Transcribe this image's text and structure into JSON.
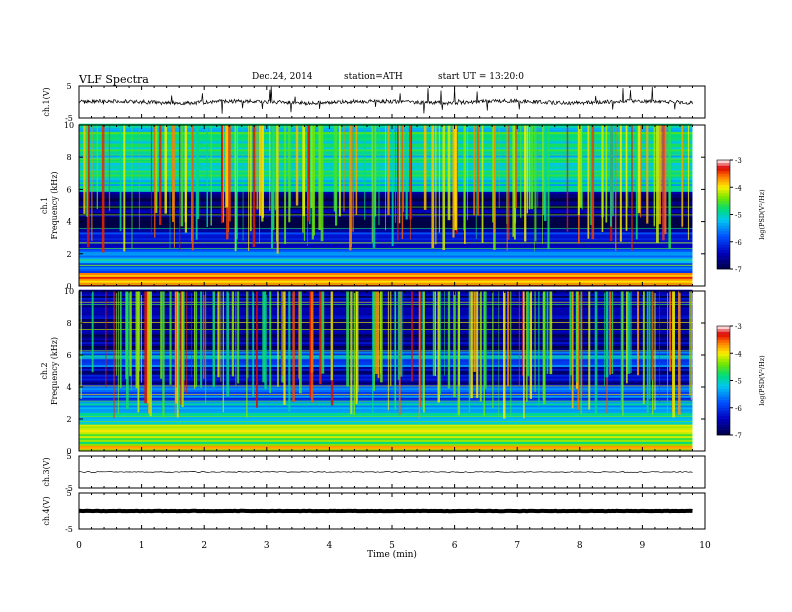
{
  "header": {
    "title": "VLF  Spectra",
    "date": "Dec.24, 2014",
    "station": "station=ATH",
    "start": "start  UT  =   13:20:0"
  },
  "chart_data": {
    "type": "heatmap",
    "xlabel": "Time  (min)",
    "xlim": [
      0,
      10
    ],
    "x_ticks": [
      0,
      1,
      2,
      3,
      4,
      5,
      6,
      7,
      8,
      9,
      10
    ],
    "data_end_min": 9.8,
    "panels": [
      {
        "name": "ch.1(V)",
        "type": "line",
        "ylabel": "ch.1(V)",
        "ylim": [
          -5,
          5
        ],
        "y_ticks": [
          5,
          -5
        ],
        "baseline": 0,
        "noise_amplitude": 0.6,
        "spikes": true
      },
      {
        "name": "ch.1 spectrogram",
        "type": "heatmap",
        "ylabel_top": "ch.1",
        "ylabel": "Frequency  (kHz)",
        "ylim": [
          0,
          10
        ],
        "y_ticks": [
          0,
          2,
          4,
          6,
          8,
          10
        ],
        "colorbar": {
          "label": "log(PSD(V²/Hz)",
          "range": [
            -7,
            -3
          ],
          "ticks": [
            -3,
            -4,
            -5,
            -6,
            -7
          ]
        },
        "bands_khz": [
          {
            "from": 0,
            "to": 0.8,
            "logPSD": -3.6
          },
          {
            "from": 0.8,
            "to": 2.3,
            "logPSD": -5.6
          },
          {
            "from": 2.3,
            "to": 3.3,
            "logPSD": -6.0
          },
          {
            "from": 3.3,
            "to": 5.8,
            "logPSD": -6.8
          },
          {
            "from": 5.8,
            "to": 6.0,
            "logPSD": -5.3
          },
          {
            "from": 6.0,
            "to": 10,
            "logPSD": -5.0
          }
        ],
        "sferics": "broadband vertical bursts, logPSD -3.5 to -5"
      },
      {
        "name": "ch.2 spectrogram",
        "type": "heatmap",
        "ylabel_top": "ch.2",
        "ylabel": "Frequency  (kHz)",
        "ylim": [
          0,
          10
        ],
        "y_ticks": [
          0,
          2,
          4,
          6,
          8,
          10
        ],
        "colorbar": {
          "label": "log(PSD(V²/Hz)",
          "range": [
            -7,
            -3
          ],
          "ticks": [
            -3,
            -4,
            -5,
            -6,
            -7
          ]
        },
        "bands_khz": [
          {
            "from": 0,
            "to": 0.4,
            "logPSD": -4.0
          },
          {
            "from": 0.4,
            "to": 1.6,
            "logPSD": -4.4
          },
          {
            "from": 1.6,
            "to": 3.0,
            "logPSD": -5.2
          },
          {
            "from": 3.0,
            "to": 4.0,
            "logPSD": -5.8
          },
          {
            "from": 4.0,
            "to": 5.2,
            "logPSD": -6.4
          },
          {
            "from": 5.2,
            "to": 6.2,
            "logPSD": -5.6
          },
          {
            "from": 6.2,
            "to": 10,
            "logPSD": -6.6
          }
        ],
        "sferics": "broadband vertical bursts, logPSD -3.5 to -5"
      },
      {
        "name": "ch.3(V)",
        "type": "line",
        "ylabel": "ch.3(V)",
        "ylim": [
          -5,
          5
        ],
        "y_ticks": [
          5,
          -5
        ],
        "baseline": 0,
        "noise_amplitude": 0.15,
        "spikes": false
      },
      {
        "name": "ch.4(V)",
        "type": "line",
        "ylabel": "ch.4(V)",
        "ylim": [
          -5,
          5
        ],
        "y_ticks": [
          5,
          -5
        ],
        "baseline": 0,
        "noise_amplitude": 0.05,
        "thick": true
      }
    ]
  }
}
